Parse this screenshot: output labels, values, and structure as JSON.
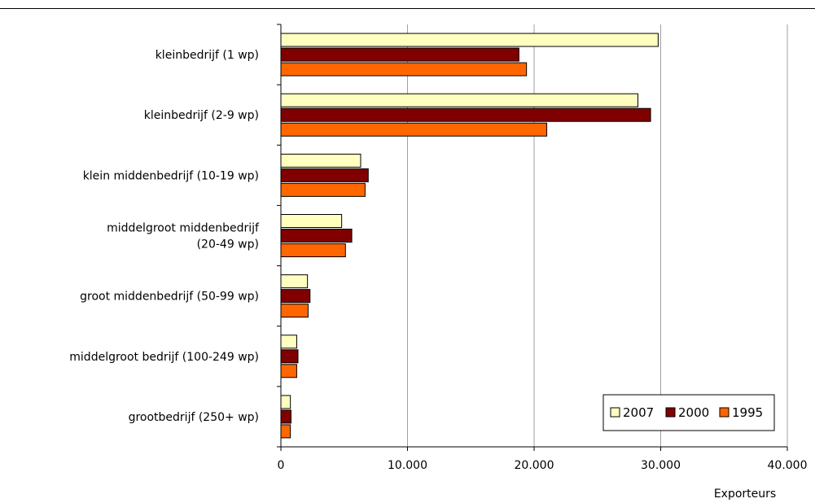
{
  "chart_data": {
    "type": "bar",
    "orientation": "horizontal",
    "categories": [
      [
        "kleinbedrijf (1 wp)"
      ],
      [
        "kleinbedrijf (2-9 wp)"
      ],
      [
        "klein middenbedrijf (10-19 wp)"
      ],
      [
        "middelgroot middenbedrijf",
        "(20-49 wp)"
      ],
      [
        "groot middenbedrijf (50-99 wp)"
      ],
      [
        "middelgroot bedrijf (100-249 wp)"
      ],
      [
        "grootbedrijf (250+ wp)"
      ]
    ],
    "series": [
      {
        "name": "2007",
        "color": "#ffffc0",
        "values": [
          29800,
          28200,
          6300,
          4800,
          2100,
          1250,
          750
        ]
      },
      {
        "name": "2000",
        "color": "#800000",
        "values": [
          18800,
          29200,
          6900,
          5600,
          2300,
          1350,
          800
        ]
      },
      {
        "name": "1995",
        "color": "#ff6600",
        "values": [
          19400,
          21000,
          6650,
          5100,
          2150,
          1250,
          750
        ]
      }
    ],
    "xlim": [
      0,
      40000
    ],
    "xticks": [
      0,
      10000,
      20000,
      30000,
      40000
    ],
    "xtick_labels": [
      "0",
      "10.000",
      "20.000",
      "30.000",
      "40.000"
    ],
    "xlabel": "Exporteurs",
    "grid": true,
    "legend_position": "bottom-right"
  }
}
